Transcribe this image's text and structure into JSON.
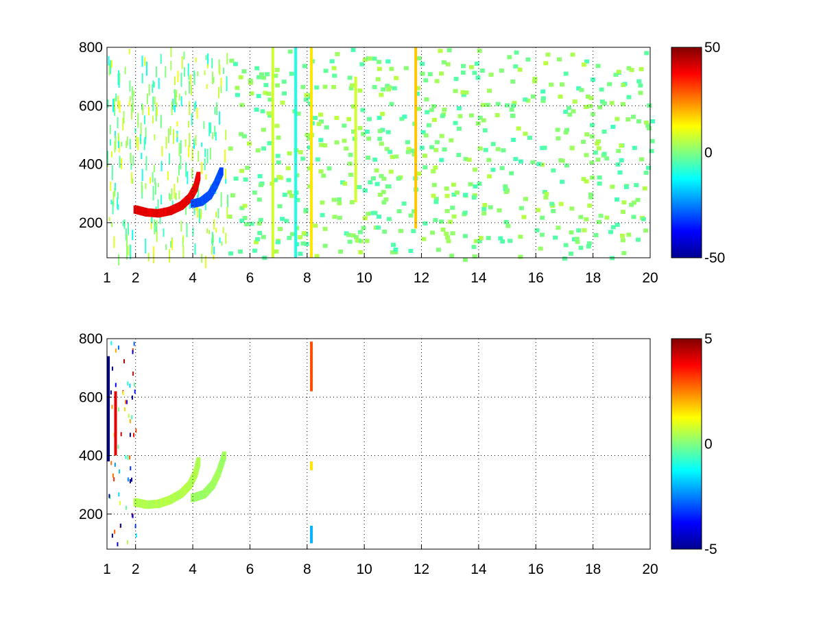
{
  "chart_data": [
    {
      "type": "heatmap",
      "title": "",
      "xlabel": "",
      "ylabel": "",
      "xlim": [
        1,
        20
      ],
      "ylim": [
        80,
        800
      ],
      "x_ticks": [
        1,
        2,
        4,
        6,
        8,
        10,
        12,
        14,
        16,
        18,
        20
      ],
      "y_ticks": [
        200,
        400,
        600,
        800
      ],
      "grid": true,
      "colormap": "jet",
      "clim": [
        -50,
        50
      ],
      "colorbar_ticks": [
        -50,
        0,
        50
      ],
      "features": [
        {
          "kind": "arc",
          "desc": "positive arc",
          "points": [
            [
              2,
              245
            ],
            [
              2.4,
              235
            ],
            [
              2.8,
              232
            ],
            [
              3.2,
              240
            ],
            [
              3.6,
              258
            ],
            [
              3.9,
              285
            ],
            [
              4.1,
              320
            ],
            [
              4.2,
              360
            ]
          ],
          "value": 40
        },
        {
          "kind": "arc",
          "desc": "negative arc",
          "points": [
            [
              4.0,
              265
            ],
            [
              4.3,
              272
            ],
            [
              4.6,
              295
            ],
            [
              4.8,
              330
            ],
            [
              5.0,
              375
            ]
          ],
          "value": -30
        },
        {
          "kind": "vline",
          "x": 8.15,
          "y": [
            80,
            800
          ],
          "value": 15
        },
        {
          "kind": "vline",
          "x": 11.8,
          "y": [
            180,
            800
          ],
          "value": 18
        },
        {
          "kind": "vline",
          "x": 9.7,
          "y": [
            270,
            700
          ],
          "value": 8
        },
        {
          "kind": "vline",
          "x": 6.8,
          "y": [
            80,
            800
          ],
          "value": 8
        },
        {
          "kind": "vline",
          "x": 7.6,
          "y": [
            80,
            800
          ],
          "value": -10
        }
      ],
      "background": "sparse green/yellow/cyan speckle, dense for x<5, sparse for x>5"
    },
    {
      "type": "heatmap",
      "title": "",
      "xlabel": "",
      "ylabel": "",
      "xlim": [
        1,
        20
      ],
      "ylim": [
        80,
        800
      ],
      "x_ticks": [
        1,
        2,
        4,
        6,
        8,
        10,
        12,
        14,
        16,
        18,
        20
      ],
      "y_ticks": [
        200,
        400,
        600,
        800
      ],
      "grid": true,
      "colormap": "jet",
      "clim": [
        -5,
        5
      ],
      "colorbar_ticks": [
        -5,
        0,
        5
      ],
      "features": [
        {
          "kind": "arc",
          "desc": "faint arc",
          "points": [
            [
              2,
              240
            ],
            [
              2.4,
              232
            ],
            [
              2.8,
              235
            ],
            [
              3.2,
              248
            ],
            [
              3.6,
              270
            ],
            [
              3.9,
              300
            ],
            [
              4.1,
              340
            ],
            [
              4.2,
              380
            ]
          ],
          "value": 0.5
        },
        {
          "kind": "arc",
          "desc": "faint arc 2",
          "points": [
            [
              4.0,
              255
            ],
            [
              4.4,
              268
            ],
            [
              4.7,
              300
            ],
            [
              4.9,
              340
            ],
            [
              5.1,
              400
            ]
          ],
          "value": 0.3
        },
        {
          "kind": "vline",
          "x": 8.15,
          "y": [
            620,
            790
          ],
          "value": 3
        },
        {
          "kind": "vline",
          "x": 8.15,
          "y": [
            350,
            380
          ],
          "value": 1.5
        },
        {
          "kind": "vline",
          "x": 8.15,
          "y": [
            100,
            160
          ],
          "value": -2
        },
        {
          "kind": "vline",
          "x": 1.05,
          "y": [
            380,
            740
          ],
          "value": -5
        },
        {
          "kind": "vline",
          "x": 1.3,
          "y": [
            400,
            620
          ],
          "value": 4
        }
      ],
      "background": "mostly empty white"
    }
  ]
}
